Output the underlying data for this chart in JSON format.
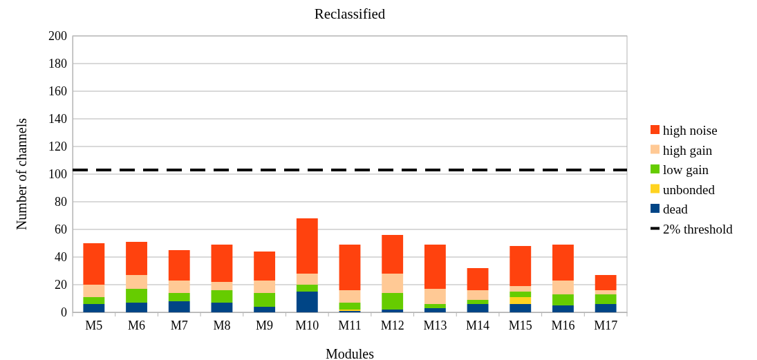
{
  "chart_data": {
    "type": "bar",
    "title": "Reclassified",
    "xlabel": "Modules",
    "ylabel": "Number of channels",
    "categories": [
      "M5",
      "M6",
      "M7",
      "M8",
      "M9",
      "M10",
      "M11",
      "M12",
      "M13",
      "M14",
      "M15",
      "M16",
      "M17"
    ],
    "stacked": true,
    "series": [
      {
        "name": "dead",
        "color": "#004586",
        "values": [
          6,
          7,
          8,
          7,
          4,
          15,
          1,
          2,
          3,
          6,
          6,
          5,
          6
        ]
      },
      {
        "name": "unbonded",
        "color": "#ffd320",
        "values": [
          0,
          0,
          0,
          0,
          0,
          0,
          1,
          0,
          0,
          0,
          5,
          0,
          0
        ]
      },
      {
        "name": "low gain",
        "color": "#66cc00",
        "values": [
          5,
          10,
          6,
          9,
          10,
          5,
          5,
          12,
          3,
          3,
          4,
          8,
          7
        ]
      },
      {
        "name": "high gain",
        "color": "#ffc995",
        "values": [
          9,
          10,
          9,
          6,
          9,
          8,
          9,
          14,
          11,
          7,
          4,
          10,
          3
        ]
      },
      {
        "name": "high noise",
        "color": "#ff420e",
        "values": [
          30,
          24,
          22,
          27,
          21,
          40,
          33,
          28,
          32,
          16,
          29,
          26,
          11
        ]
      }
    ],
    "ylim": [
      0,
      200
    ],
    "yticks": [
      0,
      20,
      40,
      60,
      80,
      100,
      120,
      140,
      160,
      180,
      200
    ],
    "grid": "y",
    "legend": "right",
    "ref_lines": [
      {
        "axis": "y",
        "value": 103,
        "label": "2% threshold",
        "color": "#000000",
        "line_style": "dashed"
      }
    ]
  }
}
